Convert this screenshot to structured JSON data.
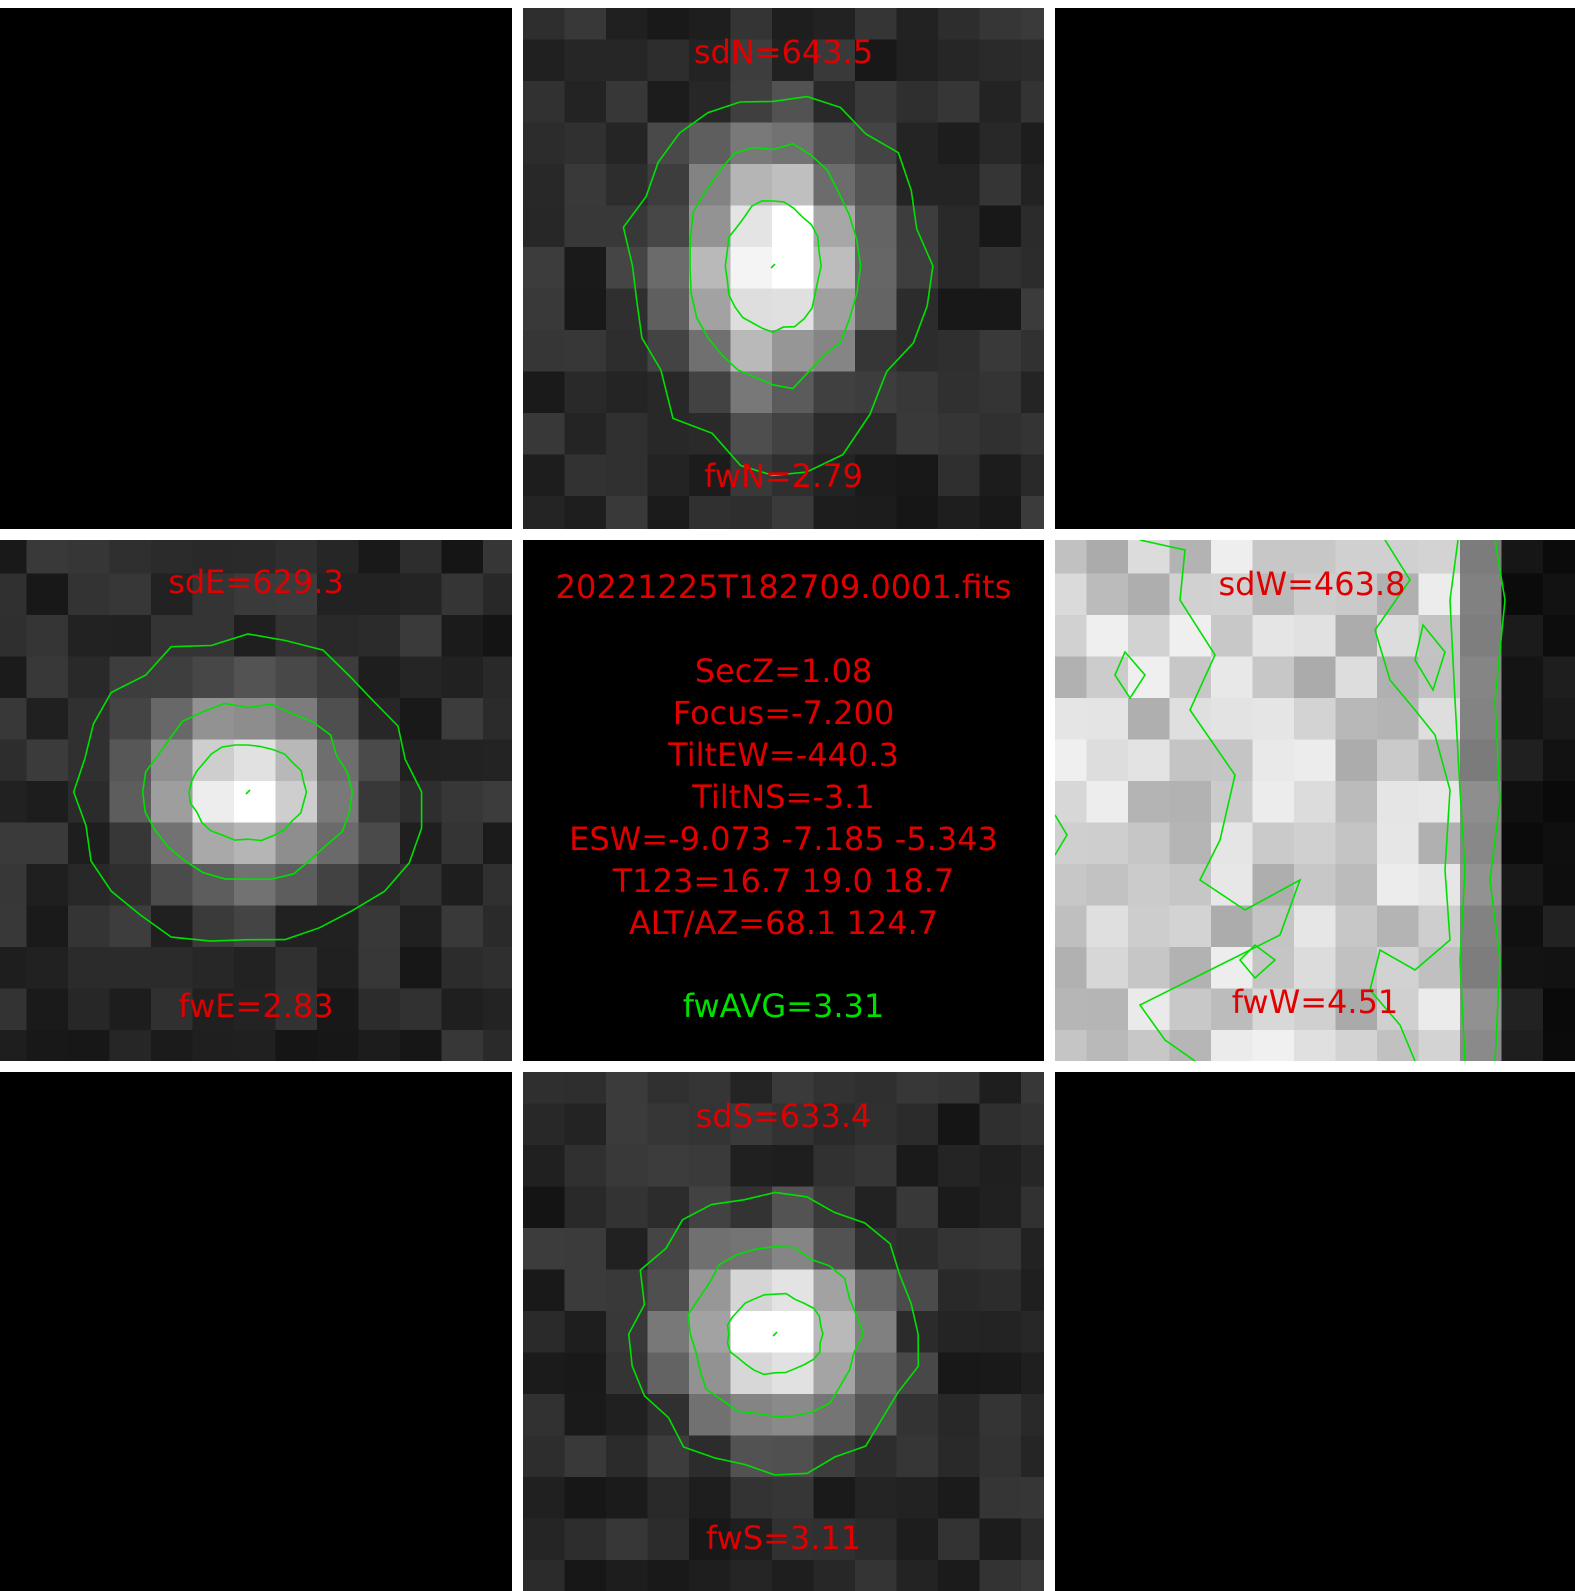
{
  "colors": {
    "label": "#e00000",
    "contour": "#00e000",
    "background": "#000000",
    "gutter": "#ffffff"
  },
  "tiles": {
    "north": {
      "sd_label": "sdN=643.5",
      "fw_label": "fwN=2.79"
    },
    "east": {
      "sd_label": "sdE=629.3",
      "fw_label": "fwE=2.83"
    },
    "west": {
      "sd_label": "sdW=463.8",
      "fw_label": "fwW=4.51"
    },
    "south": {
      "sd_label": "sdS=633.4",
      "fw_label": "fwS=3.11"
    }
  },
  "info": {
    "filename": "20221225T182709.0001.fits",
    "lines": [
      "SecZ=1.08",
      "Focus=-7.200",
      "TiltEW=-440.3",
      "TiltNS=-3.1",
      "ESW=-9.073 -7.185 -5.343",
      "T123=16.7 19.0 18.7",
      "ALT/AZ=68.1 124.7"
    ],
    "average": "fwAVG=3.31"
  }
}
